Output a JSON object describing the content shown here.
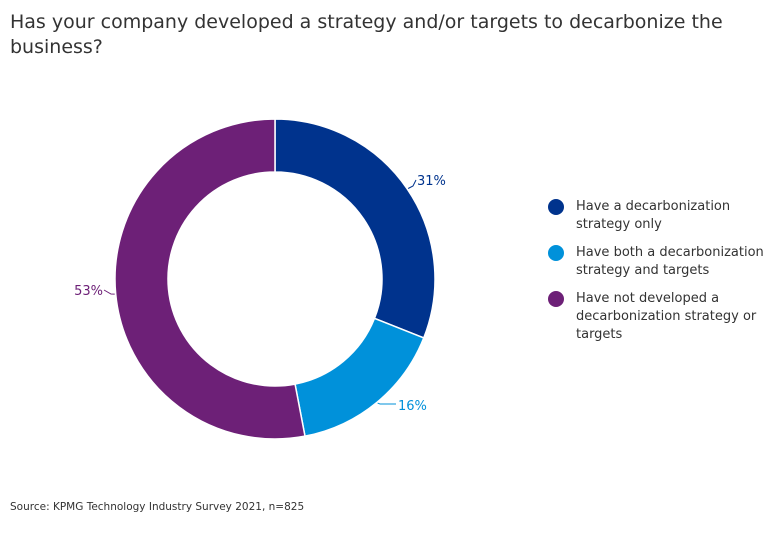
{
  "title": "Has your company developed a strategy and/or targets to decarbonize the business?",
  "source": "Source: KPMG Technology Industry Survey 2021, n=825",
  "chart_data": {
    "type": "pie",
    "variant": "donut",
    "categories": [
      "Have a decarbonization strategy only",
      "Have both a decarbonization strategy and targets",
      "Have not developed a decarbonization strategy or targets"
    ],
    "values": [
      31,
      16,
      53
    ],
    "labels": [
      "31%",
      "16%",
      "53%"
    ],
    "colors": [
      "#00338d",
      "#0091da",
      "#6d2077"
    ],
    "legend_position": "right"
  }
}
